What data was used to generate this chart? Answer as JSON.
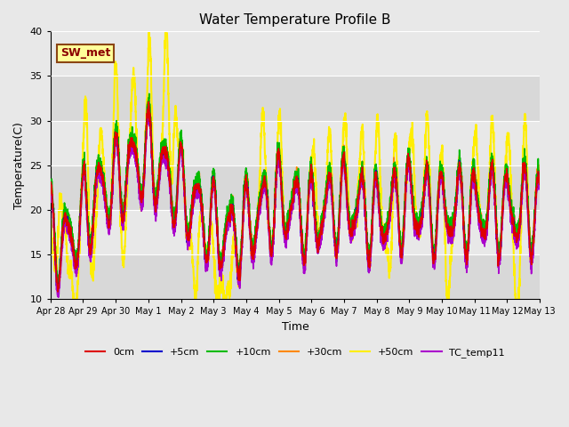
{
  "title": "Water Temperature Profile B",
  "xlabel": "Time",
  "ylabel": "Temperature(C)",
  "ylim": [
    10,
    40
  ],
  "xlim_start": 0,
  "xlim_end": 15,
  "fig_bg_color": "#e8e8e8",
  "plot_bg_color": "#e0e0e0",
  "band_colors": [
    "#d8d8d8",
    "#e8e8e8"
  ],
  "annotation_text": "SW_met",
  "annotation_color": "#8b0000",
  "annotation_bg": "#ffff99",
  "annotation_border": "#8b4513",
  "series": {
    "0cm": {
      "color": "#dd0000",
      "lw": 1.2,
      "zorder": 5
    },
    "+5cm": {
      "color": "#0000cc",
      "lw": 1.2,
      "zorder": 4
    },
    "+10cm": {
      "color": "#00bb00",
      "lw": 1.2,
      "zorder": 3
    },
    "+30cm": {
      "color": "#ff8800",
      "lw": 1.2,
      "zorder": 2
    },
    "+50cm": {
      "color": "#ffee00",
      "lw": 1.5,
      "zorder": 1
    },
    "TC_temp11": {
      "color": "#aa00cc",
      "lw": 1.2,
      "zorder": 6
    }
  },
  "tick_labels": [
    "Apr 28",
    "Apr 29",
    "Apr 30",
    "May 1",
    "May 2",
    "May 3",
    "May 4",
    "May 5",
    "May 6",
    "May 7",
    "May 8",
    "May 9",
    "May 10",
    "May 11",
    "May 12",
    "May 13"
  ],
  "tick_positions": [
    0,
    1,
    2,
    3,
    4,
    5,
    6,
    7,
    8,
    9,
    10,
    11,
    12,
    13,
    14,
    15
  ],
  "grid_yticks": [
    10,
    15,
    20,
    25,
    30,
    35,
    40
  ],
  "grid_color": "#ffffff",
  "grid_lw": 0.8
}
